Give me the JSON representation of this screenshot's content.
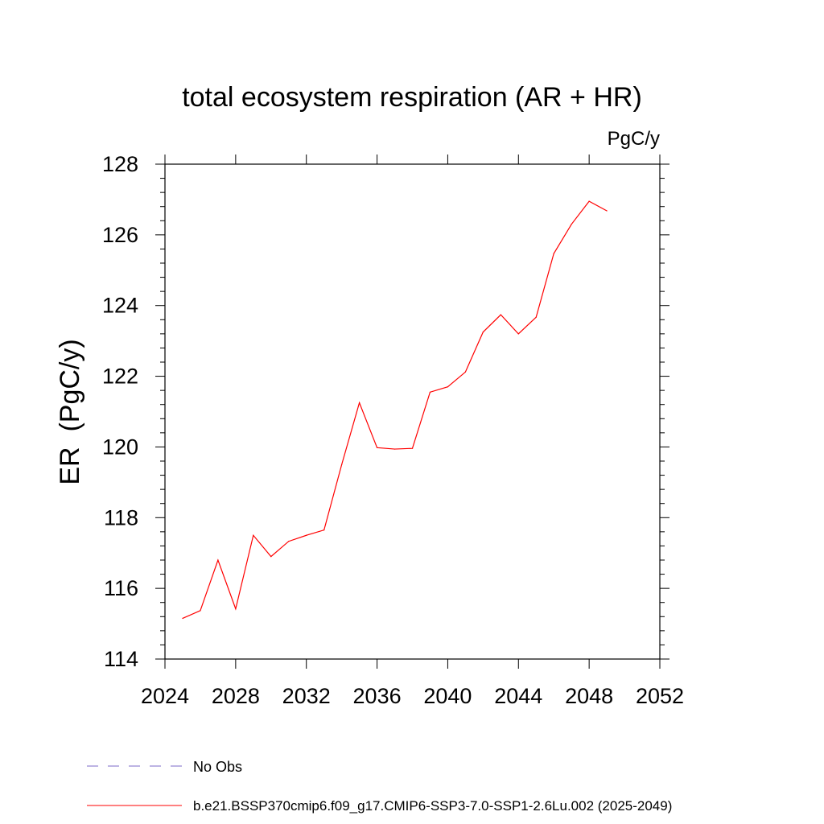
{
  "chart_data": {
    "type": "line",
    "title": "total ecosystem respiration (AR + HR)",
    "units_label": "PgC/y",
    "ylabel": "ER  (PgC/y)",
    "xlabel": "",
    "xlim": [
      2024,
      2052
    ],
    "ylim": [
      114,
      128
    ],
    "x_ticks": [
      2024,
      2028,
      2032,
      2036,
      2040,
      2044,
      2048,
      2052
    ],
    "y_ticks": [
      114,
      116,
      118,
      120,
      122,
      124,
      126,
      128
    ],
    "series": [
      {
        "name": "b.e21.BSSP370cmip6.f09_g17.CMIP6-SSP3-7.0-SSP1-2.6Lu.002 (2025-2049)",
        "color": "#ff0000",
        "x": [
          2025,
          2026,
          2027,
          2028,
          2029,
          2030,
          2031,
          2032,
          2033,
          2034,
          2035,
          2036,
          2037,
          2038,
          2039,
          2040,
          2041,
          2042,
          2043,
          2044,
          2045,
          2046,
          2047,
          2048,
          2049
        ],
        "values": [
          115.15,
          115.37,
          116.8,
          115.42,
          117.5,
          116.9,
          117.33,
          117.5,
          117.65,
          119.5,
          121.25,
          119.98,
          119.94,
          119.96,
          121.55,
          121.7,
          122.12,
          123.25,
          123.74,
          123.2,
          123.67,
          125.47,
          126.3,
          126.95,
          126.68
        ]
      }
    ],
    "legend": [
      {
        "label": "No Obs",
        "color": "#7b68c8",
        "style": "dashed"
      },
      {
        "label": "b.e21.BSSP370cmip6.f09_g17.CMIP6-SSP3-7.0-SSP1-2.6Lu.002 (2025-2049)",
        "color": "#ff0000",
        "style": "solid"
      }
    ],
    "grid": false,
    "legend_placement": "bottom"
  }
}
